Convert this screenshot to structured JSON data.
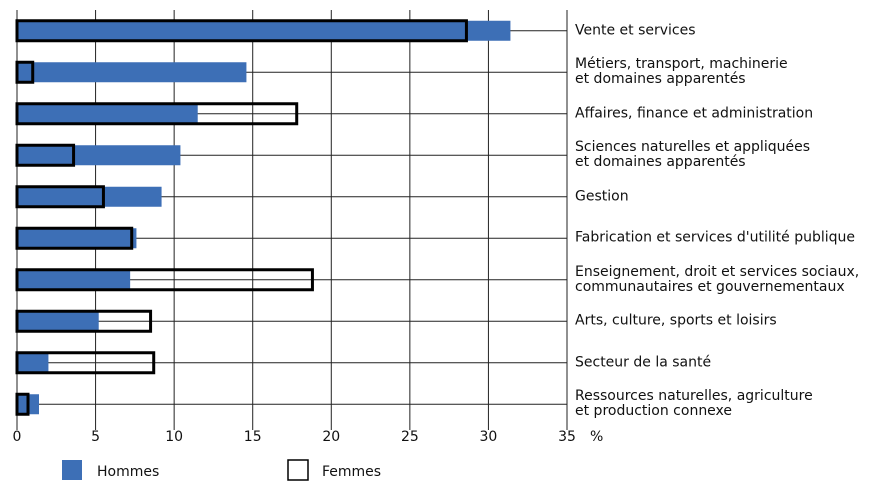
{
  "chart_data": {
    "type": "bar",
    "orientation": "horizontal",
    "overlap": true,
    "categories": [
      "Vente et services",
      "Métiers, transport, machinerie\net domaines apparentés",
      "Affaires, finance et administration",
      "Sciences naturelles et appliquées\net domaines apparentés",
      "Gestion",
      "Fabrication et services d'utilité publique",
      "Enseignement, droit et services sociaux,\ncommunautaires et gouvernementaux",
      "Arts, culture, sports et loisirs",
      "Secteur de la santé",
      "Ressources naturelles, agriculture\net production connexe"
    ],
    "series": [
      {
        "name": "Hommes",
        "color": "#3d6fb6",
        "style": "filled",
        "values": [
          31.4,
          14.6,
          11.5,
          10.4,
          9.2,
          7.6,
          7.2,
          5.2,
          2.0,
          1.4
        ]
      },
      {
        "name": "Femmes",
        "color": "#000000",
        "style": "outline",
        "values": [
          28.6,
          1.0,
          17.8,
          3.6,
          5.5,
          7.3,
          18.8,
          8.5,
          8.7,
          0.7
        ]
      }
    ],
    "xlim": [
      0,
      35
    ],
    "xticks": [
      0,
      5,
      10,
      15,
      20,
      25,
      30,
      35
    ],
    "x_unit": "%",
    "grid": true
  }
}
